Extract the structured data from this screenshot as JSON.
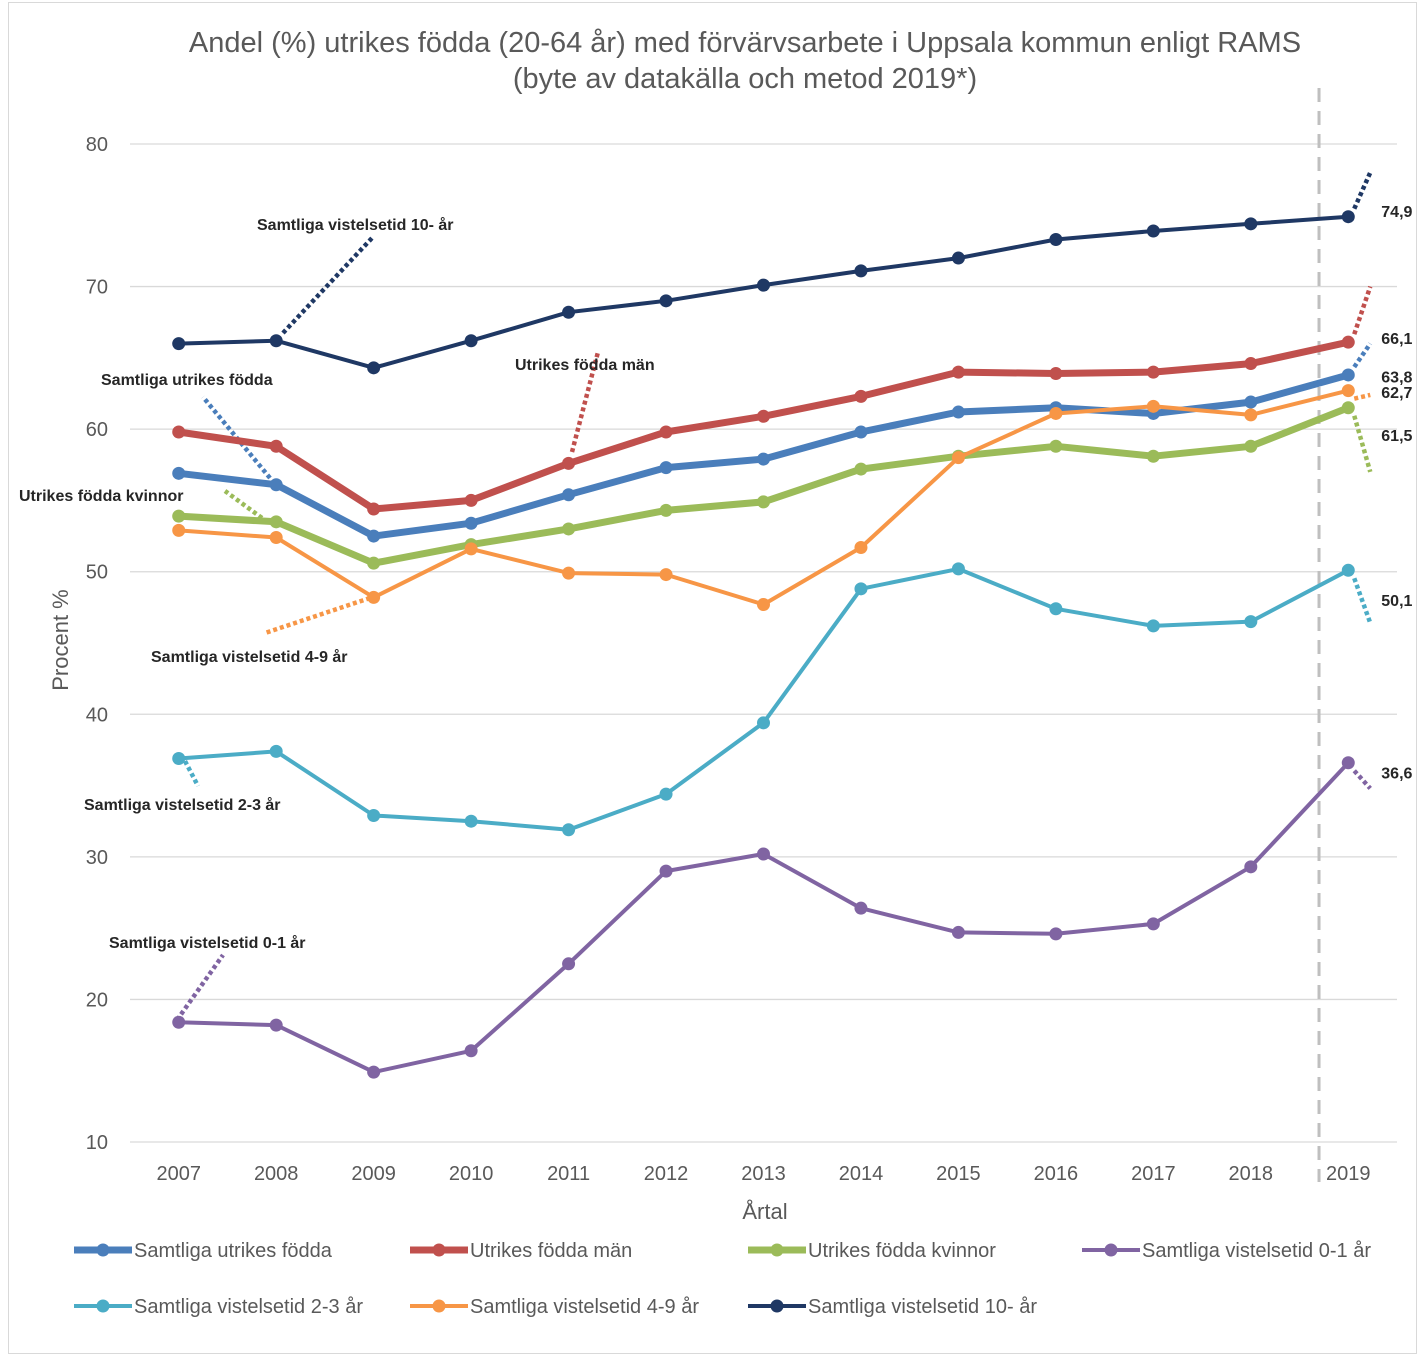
{
  "chart_data": {
    "type": "line",
    "title": "Andel (%) utrikes födda (20-64 år) med förvärvsarbete i Uppsala kommun enligt RAMS",
    "subtitle": "(byte av datakälla och metod 2019*)",
    "xlabel": "Årtal",
    "ylabel": "Procent %",
    "ylim": [
      10,
      80
    ],
    "yticks": [
      10,
      20,
      30,
      40,
      50,
      60,
      70,
      80
    ],
    "grid": true,
    "legend_position": "bottom",
    "categories": [
      "2007",
      "2008",
      "2009",
      "2010",
      "2011",
      "2012",
      "2013",
      "2014",
      "2015",
      "2016",
      "2017",
      "2018",
      "2019"
    ],
    "series": [
      {
        "name": "Samtliga utrikes födda",
        "color": "#4a7ebb",
        "width": 7,
        "values": [
          56.9,
          56.1,
          52.5,
          53.4,
          55.4,
          57.3,
          57.9,
          59.8,
          61.2,
          61.5,
          61.1,
          61.9,
          63.8
        ]
      },
      {
        "name": "Utrikes födda män",
        "color": "#c0504d",
        "width": 7,
        "values": [
          59.8,
          58.8,
          54.4,
          55.0,
          57.6,
          59.8,
          60.9,
          62.3,
          64.0,
          63.9,
          64.0,
          64.6,
          66.1
        ]
      },
      {
        "name": "Utrikes födda kvinnor",
        "color": "#9bbb59",
        "width": 7,
        "values": [
          53.9,
          53.5,
          50.6,
          51.9,
          53.0,
          54.3,
          54.9,
          57.2,
          58.1,
          58.8,
          58.1,
          58.8,
          61.5
        ]
      },
      {
        "name": "Samtliga vistelsetid 0-1 år",
        "color": "#8064a2",
        "width": 4,
        "values": [
          18.4,
          18.2,
          14.9,
          16.4,
          22.5,
          29.0,
          30.2,
          26.4,
          24.7,
          24.6,
          25.3,
          29.3,
          36.6
        ]
      },
      {
        "name": "Samtliga vistelsetid 2-3 år",
        "color": "#4bacc6",
        "width": 4,
        "values": [
          36.9,
          37.4,
          32.9,
          32.5,
          31.9,
          34.4,
          39.4,
          48.8,
          50.2,
          47.4,
          46.2,
          46.5,
          50.1
        ]
      },
      {
        "name": "Samtliga vistelsetid 4-9 år",
        "color": "#f79646",
        "width": 4,
        "values": [
          52.9,
          52.4,
          48.2,
          51.6,
          49.9,
          49.8,
          47.7,
          51.7,
          58.0,
          61.1,
          61.6,
          61.0,
          62.7
        ]
      },
      {
        "name": "Samtliga vistelsetid 10- år",
        "color": "#1f3864",
        "width": 4,
        "values": [
          66.0,
          66.2,
          64.3,
          66.2,
          68.2,
          69.0,
          70.1,
          71.1,
          72.0,
          73.3,
          73.9,
          74.4,
          74.9
        ]
      }
    ],
    "end_labels": [
      {
        "series": 6,
        "text": "74,9"
      },
      {
        "series": 1,
        "text": "66,1"
      },
      {
        "series": 0,
        "text": "63,8"
      },
      {
        "series": 5,
        "text": "62,7"
      },
      {
        "series": 2,
        "text": "61,5"
      },
      {
        "series": 4,
        "text": "50,1"
      },
      {
        "series": 3,
        "text": "36,6"
      }
    ],
    "series_labels": [
      {
        "series": 6,
        "text": "Samtliga vistelsetid 10- år"
      },
      {
        "series": 1,
        "text": "Utrikes födda män"
      },
      {
        "series": 0,
        "text": "Samtliga utrikes födda"
      },
      {
        "series": 2,
        "text": "Utrikes födda kvinnor"
      },
      {
        "series": 5,
        "text": "Samtliga vistelsetid 4-9 år"
      },
      {
        "series": 4,
        "text": "Samtliga vistelsetid 2-3 år"
      },
      {
        "series": 3,
        "text": "Samtliga vistelsetid 0-1 år"
      }
    ],
    "method_change_marker": "2019"
  }
}
